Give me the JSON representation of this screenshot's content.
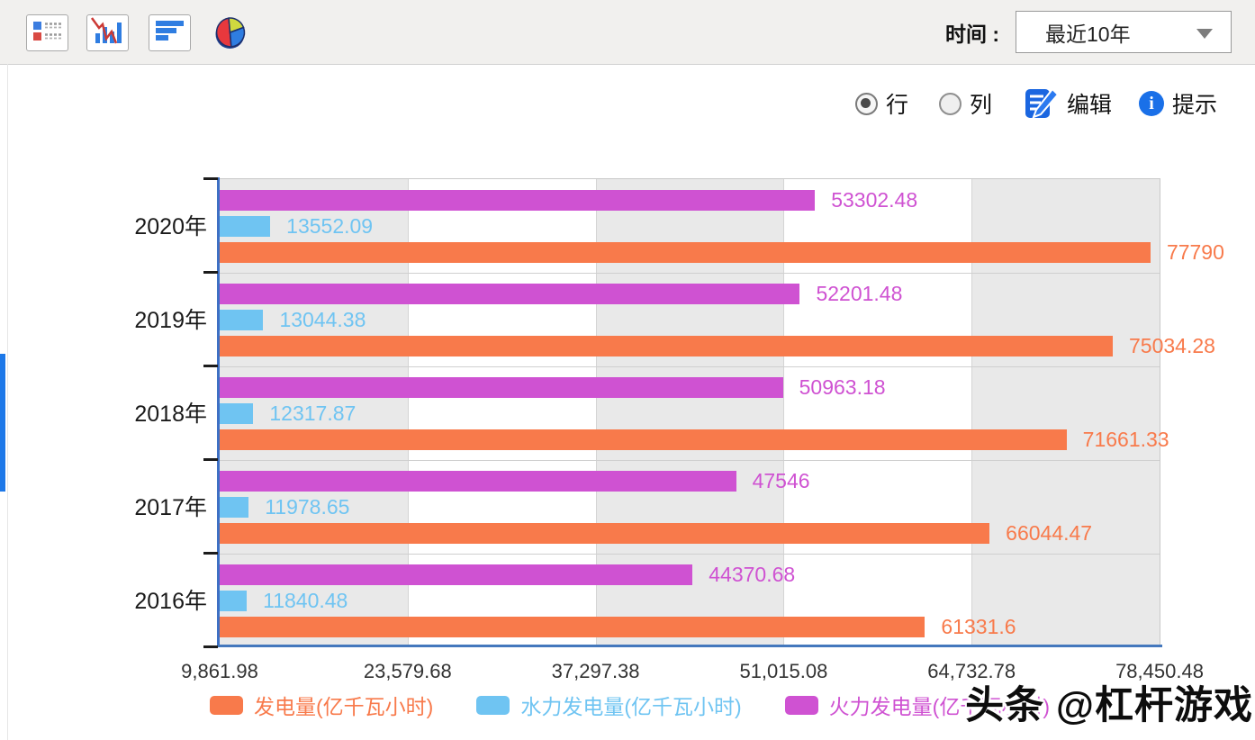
{
  "toolbar": {
    "icons": [
      "legend-view-icon",
      "combo-chart-icon",
      "bar-chart-icon",
      "pie-chart-icon"
    ],
    "time_label": "时间 :",
    "time_value": "最近10年"
  },
  "controls": {
    "row_label": "行",
    "col_label": "列",
    "row_selected": true,
    "col_selected": false,
    "edit_label": "编辑",
    "tip_label": "提示"
  },
  "chart_data": {
    "type": "bar",
    "orientation": "horizontal",
    "title": "",
    "categories": [
      "2020年",
      "2019年",
      "2018年",
      "2017年",
      "2016年"
    ],
    "series": [
      {
        "name": "发电量(亿千瓦小时)",
        "color": "#f87a4b",
        "values": [
          "77790",
          "75034.28",
          "71661.33",
          "66044.47",
          "61331.6"
        ]
      },
      {
        "name": "水力发电量(亿千瓦小时)",
        "color": "#6fc4f2",
        "values": [
          "13552.09",
          "13044.38",
          "12317.87",
          "11978.65",
          "11840.48"
        ]
      },
      {
        "name": "火力发电量(亿千瓦小时)",
        "color": "#cf52d2",
        "values": [
          "53302.48",
          "52201.48",
          "50963.18",
          "47546",
          "44370.68"
        ]
      }
    ],
    "row_display_order_top_to_bottom": [
      "火力发电量(亿千瓦小时)",
      "水力发电量(亿千瓦小时)",
      "发电量(亿千瓦小时)"
    ],
    "x_ticks": [
      "9,861.98",
      "23,579.68",
      "37,297.38",
      "51,015.08",
      "64,732.78",
      "78,450.48"
    ],
    "x_min": 9861.98,
    "x_max": 78450.48,
    "grid": true,
    "legend_position": "bottom",
    "plot_column_shading": "alternating gray/white vertical bands starting gray"
  },
  "watermark": "头条 @杠杆游戏",
  "colors": {
    "accent_blue": "#1a70e8",
    "axis_y": "#3e70c4",
    "axis_x": "#4478bd",
    "stripe_gray": "#e9e9e9"
  }
}
